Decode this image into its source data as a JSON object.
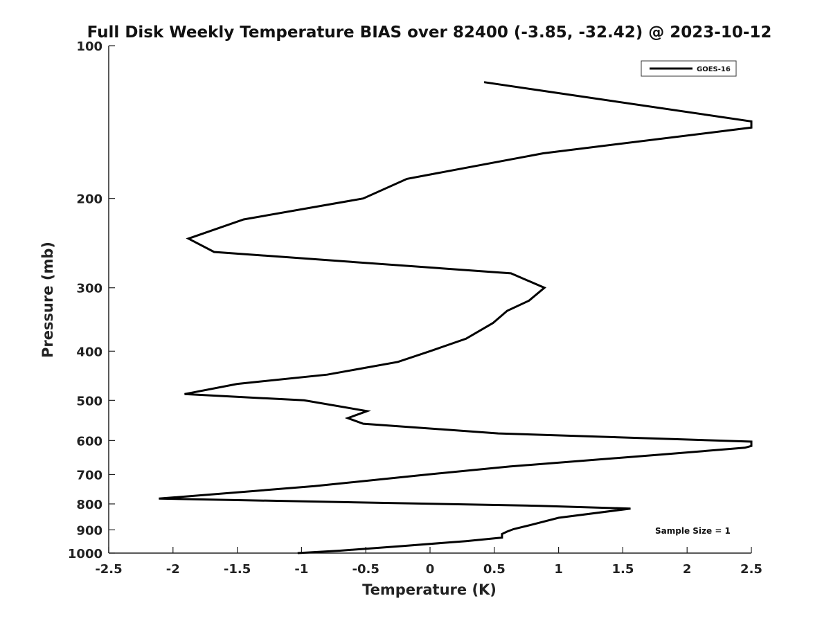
{
  "chart_data": {
    "type": "line",
    "title": "Full Disk Weekly Temperature BIAS over 82400 (-3.85, -32.42) @ 2023-10-12",
    "xlabel": "Temperature (K)",
    "ylabel": "Pressure (mb)",
    "xlim": [
      -2.5,
      2.5
    ],
    "ylim": [
      1000,
      100
    ],
    "y_scale": "log",
    "x_ticks": [
      -2.5,
      -2,
      -1.5,
      -1,
      -0.5,
      0,
      0.5,
      1,
      1.5,
      2,
      2.5
    ],
    "x_tick_labels": [
      "-2.5",
      "-2",
      "-1.5",
      "-1",
      "-0.5",
      "0",
      "0.5",
      "1",
      "1.5",
      "2",
      "2.5"
    ],
    "y_ticks": [
      100,
      200,
      300,
      400,
      500,
      600,
      700,
      800,
      900,
      1000
    ],
    "y_tick_labels": [
      "100",
      "200",
      "300",
      "400",
      "500",
      "600",
      "700",
      "800",
      "900",
      "1000"
    ],
    "grid": false,
    "legend_position": "top-right",
    "annotation": "Sample Size = 1",
    "series": [
      {
        "name": "GOES-16",
        "color": "#000000",
        "x": [
          0.42,
          2.5,
          2.5,
          0.88,
          -0.18,
          -0.52,
          -1.45,
          -1.88,
          -1.68,
          0.63,
          0.89,
          0.77,
          0.6,
          0.49,
          0.28,
          0.0,
          -0.25,
          -0.8,
          -1.5,
          -1.91,
          -0.98,
          -0.49,
          -0.64,
          -0.52,
          0.53,
          2.5,
          2.5,
          2.45,
          1.75,
          0.62,
          -0.02,
          -0.9,
          -2.11,
          0.85,
          1.56,
          1.0,
          0.8,
          0.65,
          0.6,
          0.56,
          0.56,
          0.28,
          -0.2,
          -0.7,
          -1.03
        ],
        "y": [
          118,
          141,
          145,
          163,
          183,
          200,
          220,
          240,
          255,
          281,
          300,
          318,
          333,
          352,
          378,
          400,
          420,
          445,
          464,
          486,
          500,
          525,
          542,
          556,
          581,
          603,
          615,
          620,
          641,
          675,
          700,
          738,
          781,
          807,
          817,
          852,
          878,
          897,
          907,
          917,
          932,
          947,
          968,
          989,
          1000
        ]
      }
    ]
  }
}
